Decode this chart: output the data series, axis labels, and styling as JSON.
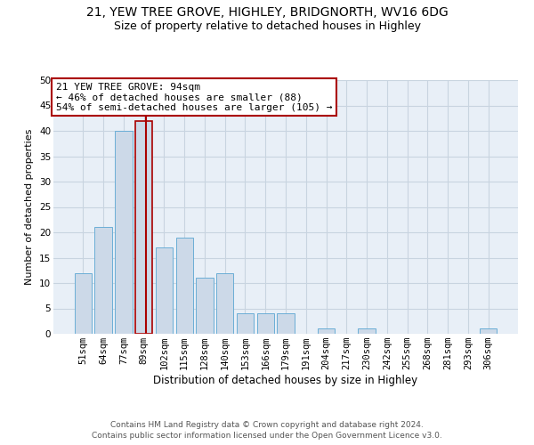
{
  "title1": "21, YEW TREE GROVE, HIGHLEY, BRIDGNORTH, WV16 6DG",
  "title2": "Size of property relative to detached houses in Highley",
  "xlabel": "Distribution of detached houses by size in Highley",
  "ylabel": "Number of detached properties",
  "categories": [
    "51sqm",
    "64sqm",
    "77sqm",
    "89sqm",
    "102sqm",
    "115sqm",
    "128sqm",
    "140sqm",
    "153sqm",
    "166sqm",
    "179sqm",
    "191sqm",
    "204sqm",
    "217sqm",
    "230sqm",
    "242sqm",
    "255sqm",
    "268sqm",
    "281sqm",
    "293sqm",
    "306sqm"
  ],
  "values": [
    12,
    21,
    40,
    42,
    17,
    19,
    11,
    12,
    4,
    4,
    4,
    0,
    1,
    0,
    1,
    0,
    0,
    0,
    0,
    0,
    1
  ],
  "bar_color": "#ccd9e8",
  "bar_edge_color": "#6baed6",
  "highlight_bar_index": 3,
  "highlight_bar_edge_color": "#aa0000",
  "vline_color": "#aa0000",
  "vline_position": 3.1,
  "annotation_text": "21 YEW TREE GROVE: 94sqm\n← 46% of detached houses are smaller (88)\n54% of semi-detached houses are larger (105) →",
  "annotation_box_facecolor": "#ffffff",
  "annotation_box_edgecolor": "#aa0000",
  "ylim_max": 50,
  "yticks": [
    0,
    5,
    10,
    15,
    20,
    25,
    30,
    35,
    40,
    45,
    50
  ],
  "plot_bg_color": "#e8eff7",
  "grid_color": "#c8d4e0",
  "footer1": "Contains HM Land Registry data © Crown copyright and database right 2024.",
  "footer2": "Contains public sector information licensed under the Open Government Licence v3.0.",
  "title1_fontsize": 10,
  "title2_fontsize": 9,
  "xlabel_fontsize": 8.5,
  "ylabel_fontsize": 8,
  "tick_fontsize": 7.5,
  "ann_fontsize": 8,
  "footer_fontsize": 6.5
}
